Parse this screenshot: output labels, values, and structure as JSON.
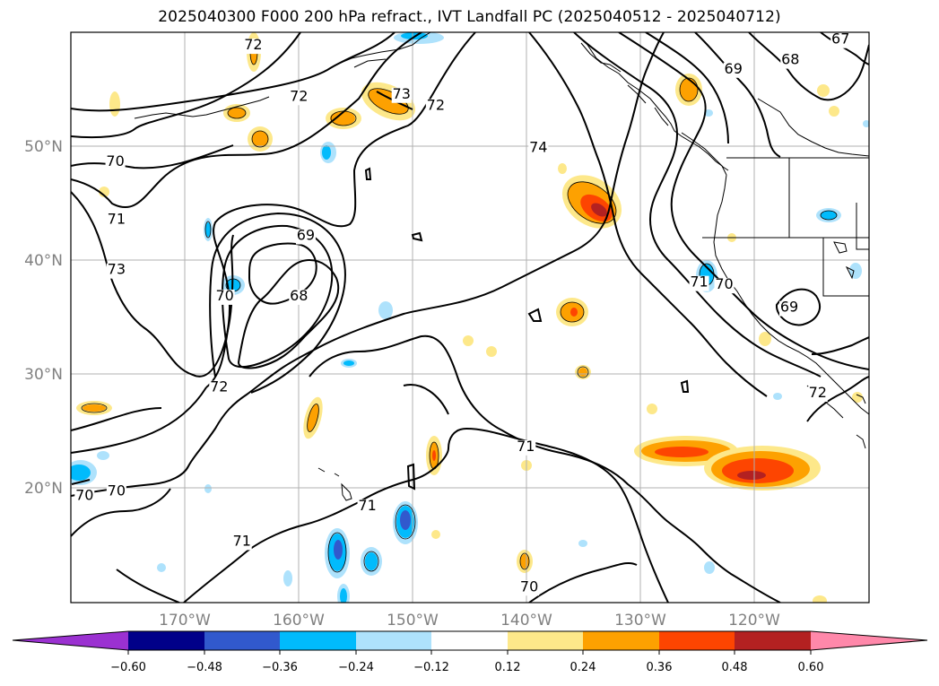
{
  "title": "2025040300 F000 200 hPa refract., IVT Landfall PC (2025040512 - 2025040712)",
  "map": {
    "lon_range": [
      -180,
      -110
    ],
    "lat_range": [
      10,
      60
    ],
    "lat_labels": [
      "50°N",
      "40°N",
      "30°N",
      "20°N"
    ],
    "lat_values": [
      50,
      40,
      30,
      20
    ],
    "lon_labels": [
      "170°W",
      "160°W",
      "150°W",
      "140°W",
      "130°W",
      "120°W"
    ],
    "lon_values": [
      -170,
      -160,
      -150,
      -140,
      -130,
      -120
    ],
    "grid": true,
    "contour_labels": [
      {
        "text": "72",
        "lon": -164,
        "lat": 58.5
      },
      {
        "text": "72",
        "lon": -160,
        "lat": 54
      },
      {
        "text": "73",
        "lon": -151,
        "lat": 54.2
      },
      {
        "text": "72",
        "lon": -148,
        "lat": 53.2
      },
      {
        "text": "74",
        "lon": -139,
        "lat": 49.5
      },
      {
        "text": "67",
        "lon": -112.5,
        "lat": 59
      },
      {
        "text": "68",
        "lon": -116.9,
        "lat": 57.2
      },
      {
        "text": "69",
        "lon": -121.9,
        "lat": 56.4
      },
      {
        "text": "70",
        "lon": -176.1,
        "lat": 48.3
      },
      {
        "text": "71",
        "lon": -176,
        "lat": 43.2
      },
      {
        "text": "73",
        "lon": -176,
        "lat": 38.8
      },
      {
        "text": "69",
        "lon": -159.4,
        "lat": 41.8
      },
      {
        "text": "68",
        "lon": -160,
        "lat": 36.5
      },
      {
        "text": "70",
        "lon": -166.5,
        "lat": 36.5
      },
      {
        "text": "71",
        "lon": -124.9,
        "lat": 37.7
      },
      {
        "text": "70",
        "lon": -122.7,
        "lat": 37.5
      },
      {
        "text": "69",
        "lon": -117,
        "lat": 35.5
      },
      {
        "text": "72",
        "lon": -167,
        "lat": 28.5
      },
      {
        "text": "72",
        "lon": -114.5,
        "lat": 28
      },
      {
        "text": "71",
        "lon": -140.1,
        "lat": 23.3
      },
      {
        "text": "70",
        "lon": -178.8,
        "lat": 19
      },
      {
        "text": "70",
        "lon": -176,
        "lat": 19.4
      },
      {
        "text": "71",
        "lon": -154,
        "lat": 18.1
      },
      {
        "text": "71",
        "lon": -165,
        "lat": 15
      },
      {
        "text": "70",
        "lon": -139.8,
        "lat": 11
      }
    ]
  },
  "colorbar": {
    "ticks": [
      "−0.60",
      "−0.48",
      "−0.36",
      "−0.24",
      "−0.12",
      "0.12",
      "0.24",
      "0.36",
      "0.48",
      "0.60"
    ],
    "colors": [
      "#9b31d1",
      "#010089",
      "#3159cd",
      "#01bbfc",
      "#aee2fc",
      "#ffffff",
      "#fde88a",
      "#fda101",
      "#fd4501",
      "#b32121",
      "#ff88aa",
      "#ff88aa"
    ],
    "extend": "both"
  }
}
